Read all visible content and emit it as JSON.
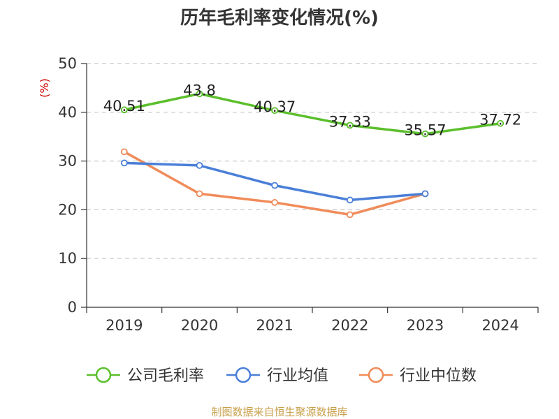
{
  "chart_data": {
    "type": "line",
    "title": "历年毛利率变化情况(%)",
    "ylabel": "(%)",
    "xlabel": "",
    "categories": [
      "2019",
      "2020",
      "2021",
      "2022",
      "2023",
      "2024"
    ],
    "ylim": [
      0,
      50
    ],
    "yticks": [
      0,
      10,
      20,
      30,
      40,
      50
    ],
    "grid": true,
    "legend_position": "bottom",
    "series": [
      {
        "name": "公司毛利率",
        "color": "#5bbf2c",
        "values": [
          40.51,
          43.8,
          40.37,
          37.33,
          35.57,
          37.72
        ],
        "data_labels": [
          "40.51",
          "43.8",
          "40.37",
          "37.33",
          "35.57",
          "37.72"
        ]
      },
      {
        "name": "行业均值",
        "color": "#4a7fd8",
        "values": [
          29.6,
          29.1,
          25.0,
          22.0,
          23.3,
          null
        ]
      },
      {
        "name": "行业中位数",
        "color": "#f08c5a",
        "values": [
          31.9,
          23.3,
          21.5,
          19.0,
          23.3,
          null
        ]
      }
    ]
  },
  "source_note": "制图数据来自恒生聚源数据库"
}
